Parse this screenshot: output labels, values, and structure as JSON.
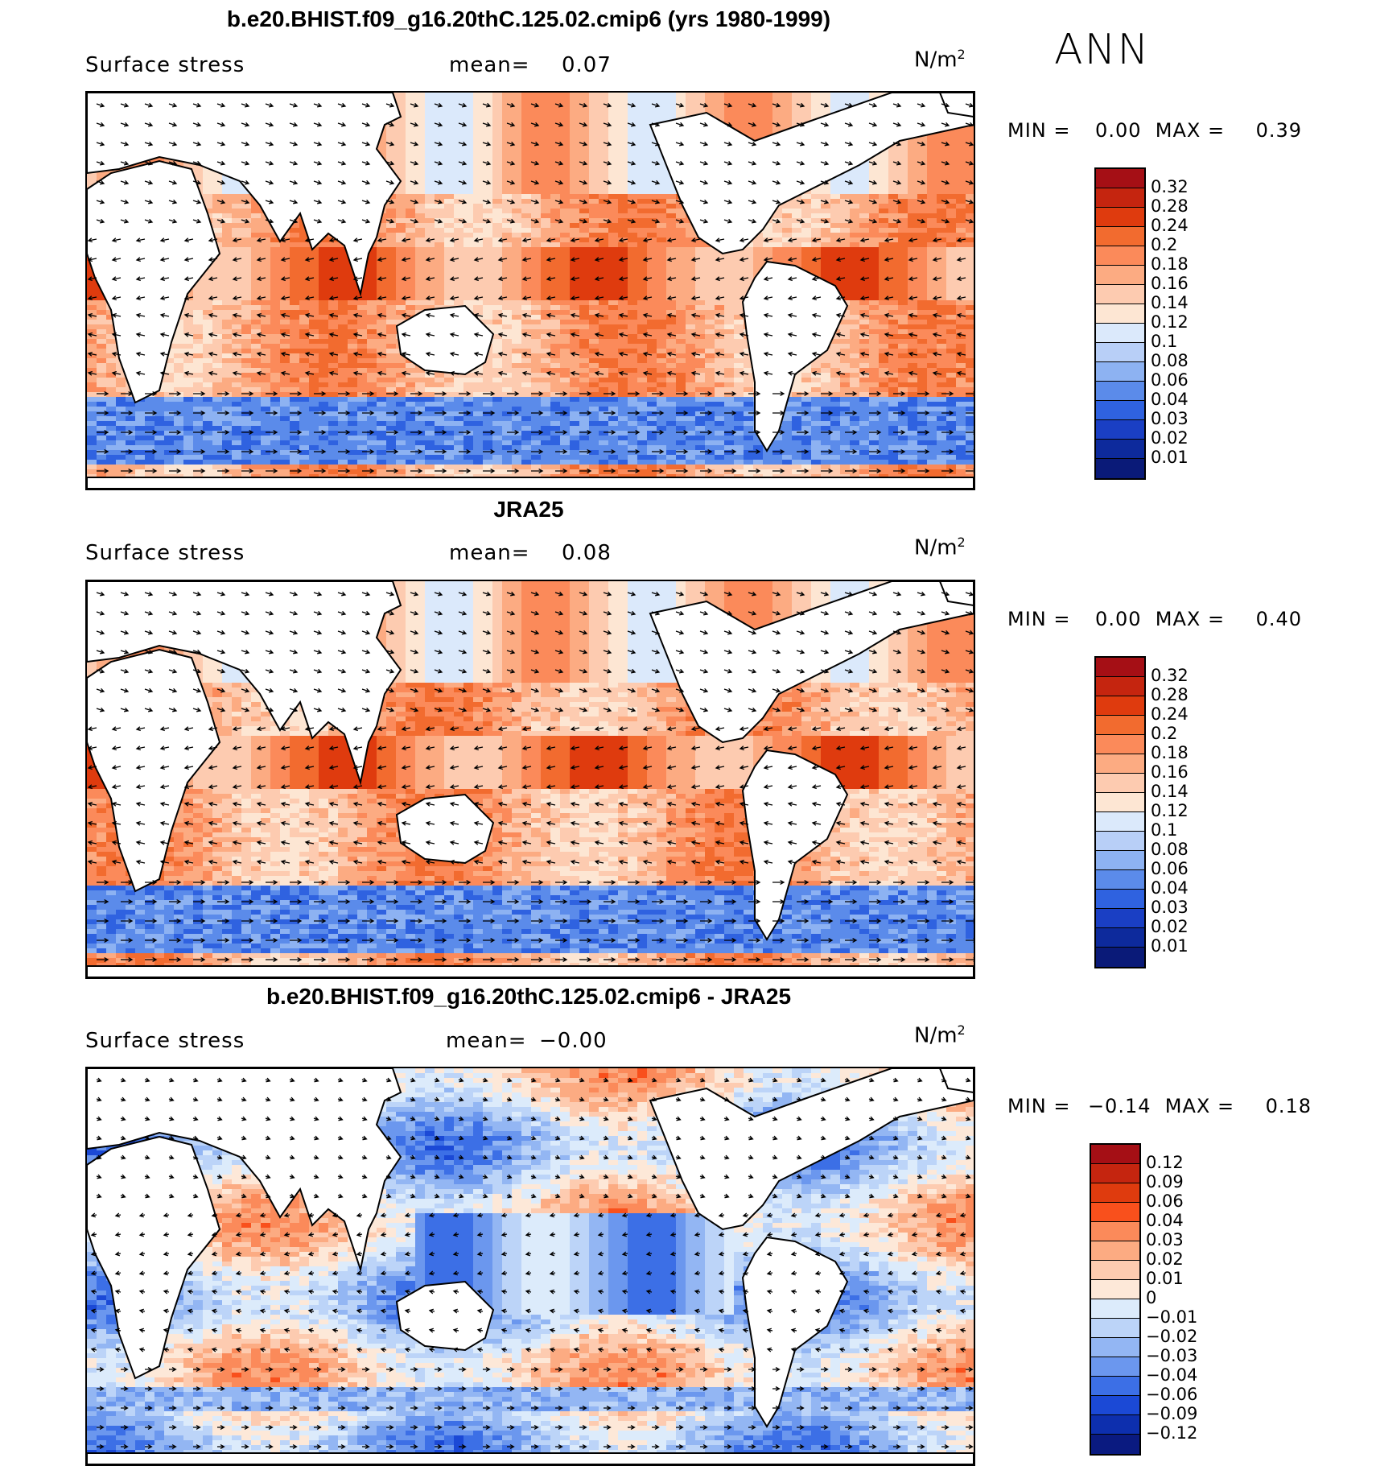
{
  "season": "ANN",
  "panels": [
    {
      "title": "b.e20.BHIST.f09_g16.20thC.125.02.cmip6 (yrs 1980-1999)",
      "variable": "Surface stress",
      "mean_label": "mean=",
      "mean_value": "0.07",
      "units_base": "N/m",
      "units_exp": "2",
      "min_label": "MIN =",
      "min_value": "0.00",
      "max_label": "MAX =",
      "max_value": "0.39",
      "colorbar": {
        "labels": [
          "0.32",
          "0.28",
          "0.24",
          "0.2",
          "0.18",
          "0.16",
          "0.14",
          "0.12",
          "0.1",
          "0.08",
          "0.06",
          "0.04",
          "0.03",
          "0.02",
          "0.01"
        ],
        "colors": [
          "#a50f15",
          "#c5250f",
          "#df3b0e",
          "#f26b2f",
          "#fb8a5a",
          "#fcab82",
          "#fdcbb0",
          "#fde6d3",
          "#dbe9fb",
          "#b8cff7",
          "#8db2f2",
          "#5b8bea",
          "#2f62e0",
          "#1a3fc4",
          "#0d2a9c",
          "#0a1a78"
        ]
      },
      "legend_note": "colors listed top (high) to bottom (low); 16 bins"
    },
    {
      "title": "JRA25",
      "variable": "Surface stress",
      "mean_label": "mean=",
      "mean_value": "0.08",
      "units_base": "N/m",
      "units_exp": "2",
      "min_label": "MIN =",
      "min_value": "0.00",
      "max_label": "MAX =",
      "max_value": "0.40",
      "colorbar": {
        "labels": [
          "0.32",
          "0.28",
          "0.24",
          "0.2",
          "0.18",
          "0.16",
          "0.14",
          "0.12",
          "0.1",
          "0.08",
          "0.06",
          "0.04",
          "0.03",
          "0.02",
          "0.01"
        ],
        "colors": [
          "#a50f15",
          "#c5250f",
          "#df3b0e",
          "#f26b2f",
          "#fb8a5a",
          "#fcab82",
          "#fdcbb0",
          "#fde6d3",
          "#dbe9fb",
          "#b8cff7",
          "#8db2f2",
          "#5b8bea",
          "#2f62e0",
          "#1a3fc4",
          "#0d2a9c",
          "#0a1a78"
        ]
      }
    },
    {
      "title": "b.e20.BHIST.f09_g16.20thC.125.02.cmip6 - JRA25",
      "variable": "Surface stress",
      "mean_label": "mean=",
      "mean_value": "−0.00",
      "units_base": "N/m",
      "units_exp": "2",
      "min_label": "MIN =",
      "min_value": "−0.14",
      "max_label": "MAX =",
      "max_value": "0.18",
      "colorbar": {
        "labels": [
          "0.12",
          "0.09",
          "0.06",
          "0.04",
          "0.03",
          "0.02",
          "0.01",
          "0",
          "−0.01",
          "−0.02",
          "−0.03",
          "−0.04",
          "−0.06",
          "−0.09",
          "−0.12"
        ],
        "colors": [
          "#a50f15",
          "#c5250f",
          "#df3b0e",
          "#f9501c",
          "#fb8a5a",
          "#fcab82",
          "#fdcbb0",
          "#fde8d8",
          "#dcebfb",
          "#bcd4f8",
          "#93b6f3",
          "#6b97ee",
          "#3c6fe6",
          "#1b49d6",
          "#0d2fae",
          "#0a1a80"
        ]
      }
    }
  ]
}
